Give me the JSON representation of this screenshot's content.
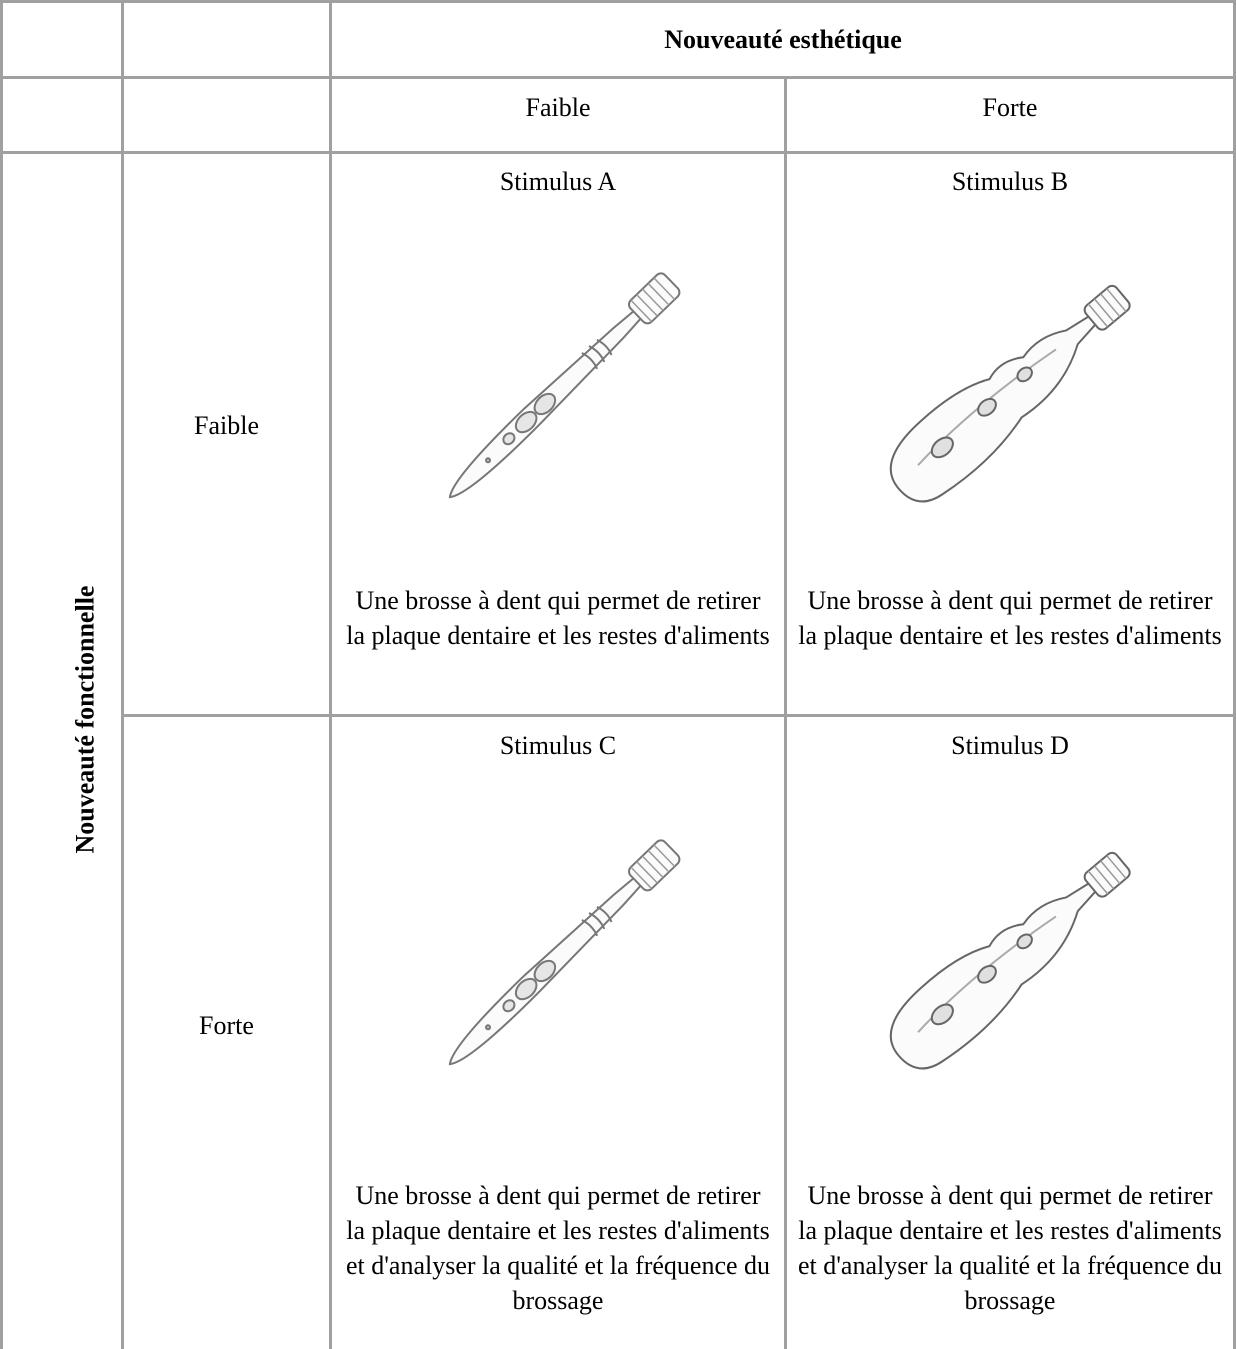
{
  "table": {
    "column_header": "Nouveauté esthétique",
    "row_header": "Nouveauté fonctionnelle",
    "column_levels": [
      "Faible",
      "Forte"
    ],
    "row_levels": [
      "Faible",
      "Forte"
    ],
    "cells": [
      [
        {
          "label": "Stimulus A",
          "description": "Une brosse à dent qui permet de retirer la plaque dentaire et les restes d'aliments"
        },
        {
          "label": "Stimulus B",
          "description": "Une brosse à dent qui permet de retirer la plaque dentaire et les restes d'aliments"
        }
      ],
      [
        {
          "label": "Stimulus C",
          "description": "Une brosse à dent qui permet de retirer la plaque dentaire et les restes d'aliments et d'analyser la qualité et la fréquence du brossage"
        },
        {
          "label": "Stimulus D",
          "description": "Une brosse à dent qui permet de retirer la plaque dentaire et les restes d'aliments et d'analyser la qualité et la fréquence du brossage"
        }
      ]
    ]
  }
}
